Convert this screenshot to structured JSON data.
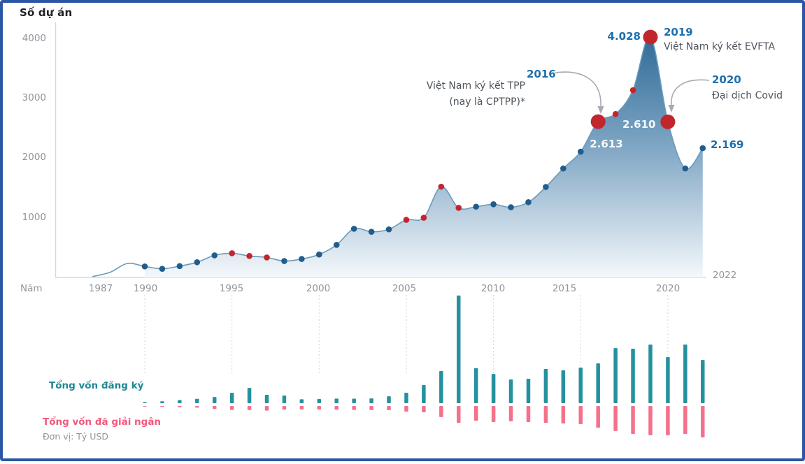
{
  "frame": {
    "border_color": "#2a56a5",
    "background": "#ffffff"
  },
  "top_chart": {
    "title": "Số dự án",
    "y_ticks": [
      "4000",
      "3000",
      "2000",
      "1000"
    ],
    "x_axis_title": "Năm",
    "x_ticks": [
      "1987",
      "1990",
      "1995",
      "2000",
      "2005",
      "2010",
      "2015",
      "2020"
    ],
    "right_axis_label": "2022"
  },
  "annotations": {
    "y2016": {
      "year": "2016",
      "line1": "Việt Nam ký kết TPP",
      "line2": "(nay là CPTPP)*",
      "value": "2.613"
    },
    "y2019": {
      "year": "2019",
      "text": "Việt Nam ký kết EVFTA",
      "value": "4.028"
    },
    "y2020": {
      "year": "2020",
      "text": "Đại dịch Covid",
      "value": "2.610"
    },
    "y2022": {
      "value": "2.169"
    }
  },
  "legend": {
    "registered_label": "Tổng vốn đăng ký",
    "disbursed_label": "Tổng vốn đã giải ngân",
    "unit_note": "Đơn vị: Tỷ USD"
  },
  "colors": {
    "accent_blue_text": "#1d6fad",
    "area_gradient_top": "#2c6896",
    "area_gradient_bottom": "#f4f8fb",
    "line": "#6b9aba",
    "dot_blue": "#205d8c",
    "dot_red": "#c2262d",
    "bar_teal": "#25919e",
    "bar_pink": "#f4718e",
    "legend_teal_text": "#1d8894",
    "legend_pink_text": "#f2597d",
    "axis_gray": "#d6d9dc",
    "tick_text_gray": "#8f959b",
    "annotation_text_gray": "#4d545c",
    "arrow_gray": "#a6abb1"
  },
  "chart_data": [
    {
      "type": "area",
      "name": "Số dự án (number of FDI projects per year)",
      "ylabel": "Số dự án",
      "xlabel": "Năm",
      "ylim": [
        0,
        4300
      ],
      "x_range": [
        1987,
        2022
      ],
      "x": [
        1987,
        1988,
        1989,
        1990,
        1991,
        1992,
        1993,
        1994,
        1995,
        1996,
        1997,
        1998,
        1999,
        2000,
        2001,
        2002,
        2003,
        2004,
        2005,
        2006,
        2007,
        2008,
        2009,
        2010,
        2011,
        2012,
        2013,
        2014,
        2015,
        2016,
        2017,
        2018,
        2019,
        2020,
        2021,
        2022
      ],
      "values": [
        20,
        90,
        240,
        190,
        150,
        195,
        260,
        375,
        410,
        365,
        340,
        280,
        315,
        390,
        550,
        820,
        770,
        810,
        970,
        1005,
        1525,
        1170,
        1190,
        1230,
        1180,
        1265,
        1520,
        1830,
        2110,
        2613,
        2740,
        3140,
        4028,
        2610,
        1830,
        2169
      ],
      "dots_start_year": 1990,
      "red_dot_years": [
        1995,
        1996,
        1997,
        2005,
        2006,
        2007,
        2008,
        2017,
        2018
      ],
      "big_red_dot_years": [
        2016,
        2019,
        2020
      ],
      "labeled_points": {
        "2016": 2613,
        "2019": 4028,
        "2020": 2610,
        "2022": 2169
      },
      "grid": false,
      "annotated_events": [
        {
          "year": 2016,
          "label": "Việt Nam ký kết TPP (nay là CPTPP)*"
        },
        {
          "year": 2019,
          "label": "Việt Nam ký kết EVFTA"
        },
        {
          "year": 2020,
          "label": "Đại dịch Covid"
        }
      ]
    },
    {
      "type": "bar",
      "name": "FDI capital (Tỷ USD)",
      "unit": "Tỷ USD",
      "categories": [
        1990,
        1991,
        1992,
        1993,
        1994,
        1995,
        1996,
        1997,
        1998,
        1999,
        2000,
        2001,
        2002,
        2003,
        2004,
        2005,
        2006,
        2007,
        2008,
        2009,
        2010,
        2011,
        2012,
        2013,
        2014,
        2015,
        2016,
        2017,
        2018,
        2019,
        2020,
        2021,
        2022
      ],
      "series": [
        {
          "name": "Tổng vốn đăng ký",
          "direction": "up",
          "color": "#25919e",
          "values": [
            0.7,
            1.3,
            2.1,
            2.9,
            4.1,
            6.9,
            10.2,
            5.6,
            5.1,
            2.6,
            2.8,
            3.1,
            3.0,
            3.2,
            4.6,
            7.0,
            12.1,
            21.4,
            71.7,
            23.3,
            19.5,
            15.8,
            16.3,
            22.8,
            21.9,
            23.7,
            26.5,
            36.7,
            36.3,
            39.0,
            30.7,
            39.0,
            28.8
          ]
        },
        {
          "name": "Tổng vốn đã giải ngân",
          "direction": "down",
          "color": "#f4718e",
          "values": [
            0.4,
            0.6,
            0.8,
            1.1,
            2.0,
            2.6,
            2.7,
            3.1,
            2.4,
            2.3,
            2.4,
            2.5,
            2.6,
            2.7,
            2.8,
            3.7,
            4.2,
            7.4,
            11.2,
            9.8,
            10.7,
            10.2,
            10.7,
            11.2,
            11.6,
            12.1,
            14.4,
            16.7,
            18.6,
            19.5,
            19.5,
            18.6,
            20.9
          ]
        }
      ],
      "legend_position": "left"
    }
  ]
}
